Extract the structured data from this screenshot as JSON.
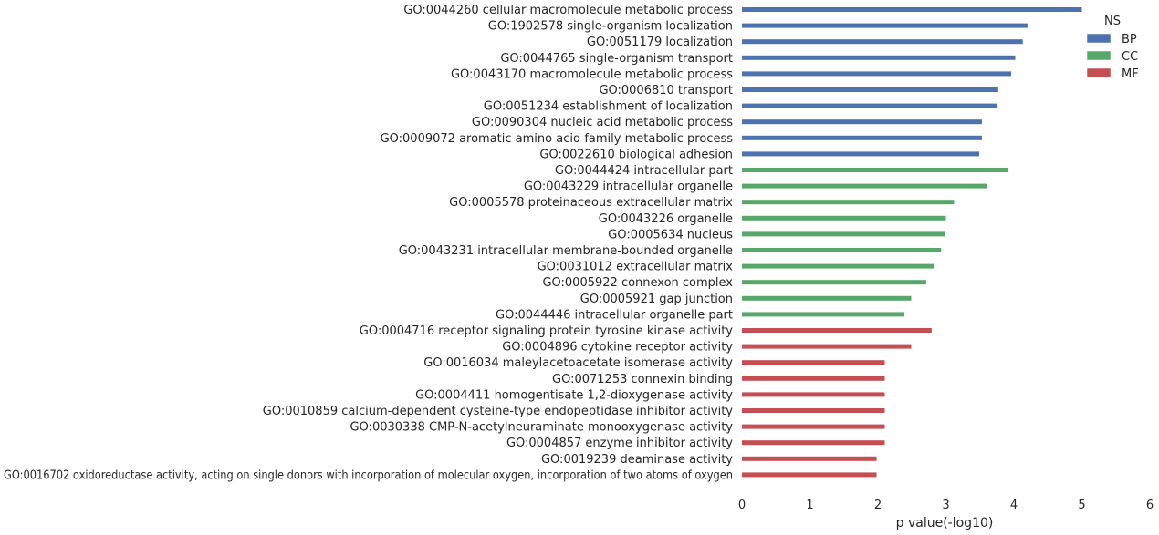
{
  "chart_data": {
    "type": "bar",
    "orientation": "horizontal",
    "xlabel": "p value(-log10)",
    "ylabel": "",
    "xlim": [
      0,
      6
    ],
    "xticks": [
      0,
      1,
      2,
      3,
      4,
      5,
      6
    ],
    "grid": false,
    "legend": {
      "title": "NS",
      "placement": "top-right"
    },
    "series": [
      {
        "name": "BP",
        "color": "#4c72b0",
        "categories": [
          "GO:0044260 cellular macromolecule metabolic process",
          "GO:1902578 single-organism localization",
          "GO:0051179 localization",
          "GO:0044765 single-organism transport",
          "GO:0043170 macromolecule metabolic process",
          "GO:0006810 transport",
          "GO:0051234 establishment of localization",
          "GO:0090304 nucleic acid metabolic process",
          "GO:0009072 aromatic amino acid family metabolic process",
          "GO:0022610 biological adhesion"
        ],
        "values": [
          5.0,
          4.2,
          4.13,
          4.02,
          3.96,
          3.77,
          3.76,
          3.53,
          3.53,
          3.49
        ]
      },
      {
        "name": "CC",
        "color": "#55a868",
        "categories": [
          "GO:0044424 intracellular part",
          "GO:0043229 intracellular organelle",
          "GO:0005578 proteinaceous extracellular matrix",
          "GO:0043226 organelle",
          "GO:0005634 nucleus",
          "GO:0043231 intracellular membrane-bounded organelle",
          "GO:0031012 extracellular matrix",
          "GO:0005922 connexon complex",
          "GO:0005921 gap junction",
          "GO:0044446 intracellular organelle part"
        ],
        "values": [
          3.92,
          3.61,
          3.12,
          3.0,
          2.98,
          2.93,
          2.82,
          2.71,
          2.49,
          2.39
        ]
      },
      {
        "name": "MF",
        "color": "#c44e52",
        "categories": [
          "GO:0004716 receptor signaling protein tyrosine kinase activity",
          "GO:0004896 cytokine receptor activity",
          "GO:0016034 maleylacetoacetate isomerase activity",
          "GO:0071253 connexin binding",
          "GO:0004411 homogentisate 1,2-dioxygenase activity",
          "GO:0010859 calcium-dependent cysteine-type endopeptidase inhibitor activity",
          "GO:0030338 CMP-N-acetylneuraminate monooxygenase activity",
          "GO:0004857 enzyme inhibitor activity",
          "GO:0019239 deaminase activity",
          "GO:0016702 oxidoreductase activity, acting on single donors with incorporation of molecular oxygen, incorporation of two atoms of oxygen"
        ],
        "values": [
          2.79,
          2.49,
          2.1,
          2.1,
          2.1,
          2.1,
          2.1,
          2.1,
          1.98,
          1.98
        ]
      }
    ]
  }
}
